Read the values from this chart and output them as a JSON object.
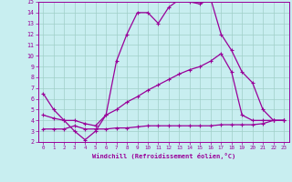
{
  "xlabel": "Windchill (Refroidissement éolien,°C)",
  "xlim": [
    -0.5,
    23.5
  ],
  "ylim": [
    2,
    15
  ],
  "xticks": [
    0,
    1,
    2,
    3,
    4,
    5,
    6,
    7,
    8,
    9,
    10,
    11,
    12,
    13,
    14,
    15,
    16,
    17,
    18,
    19,
    20,
    21,
    22,
    23
  ],
  "yticks": [
    2,
    3,
    4,
    5,
    6,
    7,
    8,
    9,
    10,
    11,
    12,
    13,
    14,
    15
  ],
  "bg_color": "#c8eef0",
  "grid_color": "#a0cfc8",
  "line_color": "#990099",
  "line1_x": [
    0,
    1,
    2,
    3,
    4,
    5,
    6,
    7,
    8,
    9,
    10,
    11,
    12,
    13,
    14,
    15,
    16,
    17,
    18,
    19,
    20,
    21,
    22,
    23
  ],
  "line1_y": [
    6.5,
    5.0,
    4.0,
    3.0,
    2.2,
    3.0,
    4.5,
    9.5,
    12.0,
    14.0,
    14.0,
    13.0,
    14.5,
    15.2,
    15.0,
    14.8,
    15.3,
    12.0,
    10.5,
    8.5,
    7.5,
    5.0,
    4.0,
    4.0
  ],
  "line2_x": [
    0,
    1,
    2,
    3,
    4,
    5,
    6,
    7,
    8,
    9,
    10,
    11,
    12,
    13,
    14,
    15,
    16,
    17,
    18,
    19,
    20,
    21,
    22,
    23
  ],
  "line2_y": [
    4.5,
    4.2,
    4.0,
    4.0,
    3.7,
    3.5,
    4.5,
    5.0,
    5.7,
    6.2,
    6.8,
    7.3,
    7.8,
    8.3,
    8.7,
    9.0,
    9.5,
    10.2,
    8.5,
    4.5,
    4.0,
    4.0,
    4.0,
    4.0
  ],
  "line3_x": [
    0,
    1,
    2,
    3,
    4,
    5,
    6,
    7,
    8,
    9,
    10,
    11,
    12,
    13,
    14,
    15,
    16,
    17,
    18,
    19,
    20,
    21,
    22,
    23
  ],
  "line3_y": [
    3.2,
    3.2,
    3.2,
    3.5,
    3.2,
    3.2,
    3.2,
    3.3,
    3.3,
    3.4,
    3.5,
    3.5,
    3.5,
    3.5,
    3.5,
    3.5,
    3.5,
    3.6,
    3.6,
    3.6,
    3.6,
    3.7,
    4.0,
    4.0
  ]
}
